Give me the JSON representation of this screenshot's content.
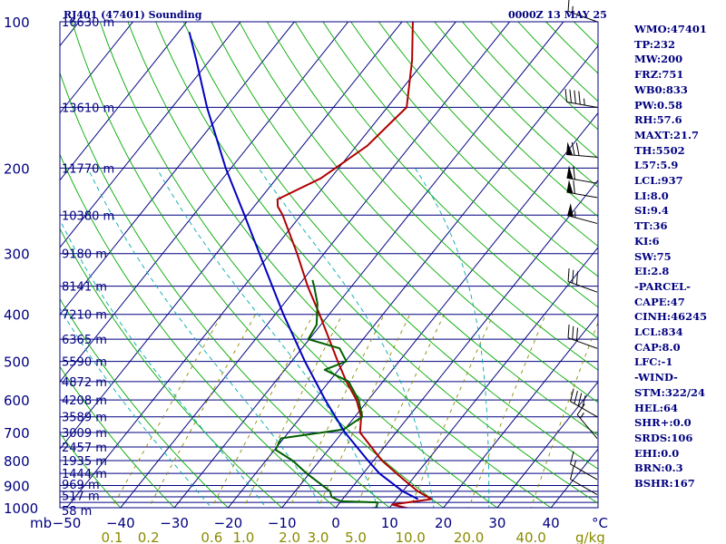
{
  "header": {
    "station": "RJ401 (47401) Sounding",
    "time": "0000Z 13 MAY 25"
  },
  "indices": [
    "WMO:47401",
    "TP:232",
    "MW:200",
    "FRZ:751",
    "WB0:833",
    "PW:0.58",
    "RH:57.6",
    "MAXT:21.7",
    "TH:5502",
    "L57:5.9",
    "LCL:937",
    "LI:8.0",
    "SI:9.4",
    "TT:36",
    "KI:6",
    "SW:75",
    "EI:2.8",
    "-PARCEL-",
    "CAPE:47",
    "CINH:46245",
    "LCL:834",
    "CAP:8.0",
    "LFC:-1",
    "-WIND-",
    "STM:322/24",
    "HEL:64",
    "SHR+:0.0",
    "SRDS:106",
    "EHI:0.0",
    "BRN:0.3",
    "BSHR:167"
  ],
  "colors": {
    "axis": "#000080",
    "isobar": "#000080",
    "isotherm": "#000080",
    "dry_adiabat": "#00aa00",
    "moist_adiabat": "#00aaaa",
    "mixing_ratio": "#8b8b00",
    "temperature": "#b00000",
    "dewpoint": "#006000",
    "parcel": "#0000c0",
    "barb": "#000000"
  },
  "chart_data": {
    "type": "line",
    "title": "RJ401 (47401) Sounding",
    "xlabel": "°C",
    "ylabel": "mb",
    "xlim": [
      -50,
      50
    ],
    "ylim": [
      1000,
      100
    ],
    "y_scale": "log",
    "pressure_ticks": [
      100,
      200,
      300,
      400,
      500,
      600,
      700,
      800,
      900,
      1000
    ],
    "temperature_ticks": [
      -50,
      -40,
      -30,
      -20,
      -10,
      0,
      10,
      20,
      30,
      40
    ],
    "tick_label_prefix": "mb",
    "mixing_ratio_labels": [
      "0.1",
      "0.2",
      "0.6",
      "1.0",
      "2.0",
      "3.0",
      "5.0",
      "10.0",
      "20.0",
      "40.0"
    ],
    "mixing_ratio_unit": "g/kg",
    "mixing_ratio_values": [
      0.1,
      0.2,
      0.6,
      1.0,
      2.0,
      3.0,
      5.0,
      10.0,
      20.0,
      40.0
    ],
    "height_levels": [
      {
        "p": 1012,
        "label": "58 m"
      },
      {
        "p": 943,
        "label": "517 m"
      },
      {
        "p": 895,
        "label": "969 m"
      },
      {
        "p": 850,
        "label": "1444 m"
      },
      {
        "p": 800,
        "label": "1935 m"
      },
      {
        "p": 750,
        "label": "2457 m"
      },
      {
        "p": 700,
        "label": "3009 m"
      },
      {
        "p": 650,
        "label": "3589 m"
      },
      {
        "p": 600,
        "label": "4208 m"
      },
      {
        "p": 550,
        "label": "4872 m"
      },
      {
        "p": 500,
        "label": "5590 m"
      },
      {
        "p": 450,
        "label": "6365 m"
      },
      {
        "p": 400,
        "label": "7210 m"
      },
      {
        "p": 350,
        "label": "8141 m"
      },
      {
        "p": 300,
        "label": "9180 m"
      },
      {
        "p": 250,
        "label": "10380 m"
      },
      {
        "p": 200,
        "label": "11770 m"
      },
      {
        "p": 150,
        "label": "13610 m"
      },
      {
        "p": 100,
        "label": "16630 m"
      }
    ],
    "series": [
      {
        "key": "temperature",
        "points": [
          {
            "p": 1012,
            "t": 15.8
          },
          {
            "p": 1000,
            "t": 13.0
          },
          {
            "p": 985,
            "t": 10.0
          },
          {
            "p": 960,
            "t": 16.5
          },
          {
            "p": 925,
            "t": 12.8
          },
          {
            "p": 875,
            "t": 8.4
          },
          {
            "p": 800,
            "t": 1.6
          },
          {
            "p": 700,
            "t": -6.7
          },
          {
            "p": 650,
            "t": -8.8
          },
          {
            "p": 600,
            "t": -12.2
          },
          {
            "p": 550,
            "t": -16.8
          },
          {
            "p": 500,
            "t": -21.4
          },
          {
            "p": 400,
            "t": -31.8
          },
          {
            "p": 350,
            "t": -38.2
          },
          {
            "p": 300,
            "t": -45.0
          },
          {
            "p": 250,
            "t": -53.4
          },
          {
            "p": 240,
            "t": -55.6
          },
          {
            "p": 232,
            "t": -56.7
          },
          {
            "p": 210,
            "t": -51.8
          },
          {
            "p": 180,
            "t": -48.0
          },
          {
            "p": 160,
            "t": -47.0
          },
          {
            "p": 150,
            "t": -46.4
          },
          {
            "p": 120,
            "t": -52.4
          },
          {
            "p": 100,
            "t": -58.0
          }
        ]
      },
      {
        "key": "dewpoint",
        "points": [
          {
            "p": 1012,
            "t": 3.0
          },
          {
            "p": 1000,
            "t": 7.5
          },
          {
            "p": 975,
            "t": 7.0
          },
          {
            "p": 970,
            "t": 0.0
          },
          {
            "p": 950,
            "t": -2.4
          },
          {
            "p": 925,
            "t": -3.5
          },
          {
            "p": 850,
            "t": -10.5
          },
          {
            "p": 800,
            "t": -15.0
          },
          {
            "p": 760,
            "t": -19.8
          },
          {
            "p": 720,
            "t": -20.5
          },
          {
            "p": 690,
            "t": -10.2
          },
          {
            "p": 650,
            "t": -8.6
          },
          {
            "p": 600,
            "t": -11.8
          },
          {
            "p": 550,
            "t": -16.4
          },
          {
            "p": 520,
            "t": -22.6
          },
          {
            "p": 500,
            "t": -19.8
          },
          {
            "p": 470,
            "t": -23.0
          },
          {
            "p": 450,
            "t": -30.2
          },
          {
            "p": 420,
            "t": -30.8
          },
          {
            "p": 380,
            "t": -33.8
          },
          {
            "p": 350,
            "t": -37.0
          },
          {
            "p": 340,
            "t": -38.2
          }
        ]
      },
      {
        "key": "parcel",
        "points": [
          {
            "p": 960,
            "t": 14.0
          },
          {
            "p": 925,
            "t": 10.0
          },
          {
            "p": 850,
            "t": 3.0
          },
          {
            "p": 800,
            "t": -1.0
          },
          {
            "p": 700,
            "t": -9.5
          },
          {
            "p": 600,
            "t": -18.0
          },
          {
            "p": 500,
            "t": -27.5
          },
          {
            "p": 400,
            "t": -38.5
          },
          {
            "p": 300,
            "t": -52.0
          },
          {
            "p": 250,
            "t": -60.5
          },
          {
            "p": 200,
            "t": -71.0
          },
          {
            "p": 150,
            "t": -83.5
          },
          {
            "p": 120,
            "t": -92.5
          },
          {
            "p": 105,
            "t": -98.0
          }
        ]
      }
    ],
    "wind_barbs": [
      {
        "p": 100,
        "dir": 290,
        "kt": 15
      },
      {
        "p": 150,
        "dir": 280,
        "kt": 45
      },
      {
        "p": 190,
        "dir": 275,
        "kt": 70
      },
      {
        "p": 215,
        "dir": 280,
        "kt": 60
      },
      {
        "p": 230,
        "dir": 280,
        "kt": 60
      },
      {
        "p": 260,
        "dir": 285,
        "kt": 55
      },
      {
        "p": 360,
        "dir": 290,
        "kt": 30
      },
      {
        "p": 470,
        "dir": 290,
        "kt": 30
      },
      {
        "p": 650,
        "dir": 300,
        "kt": 40
      },
      {
        "p": 720,
        "dir": 320,
        "kt": 15
      },
      {
        "p": 875,
        "dir": 300,
        "kt": 15
      },
      {
        "p": 940,
        "dir": 300,
        "kt": 10
      }
    ]
  }
}
